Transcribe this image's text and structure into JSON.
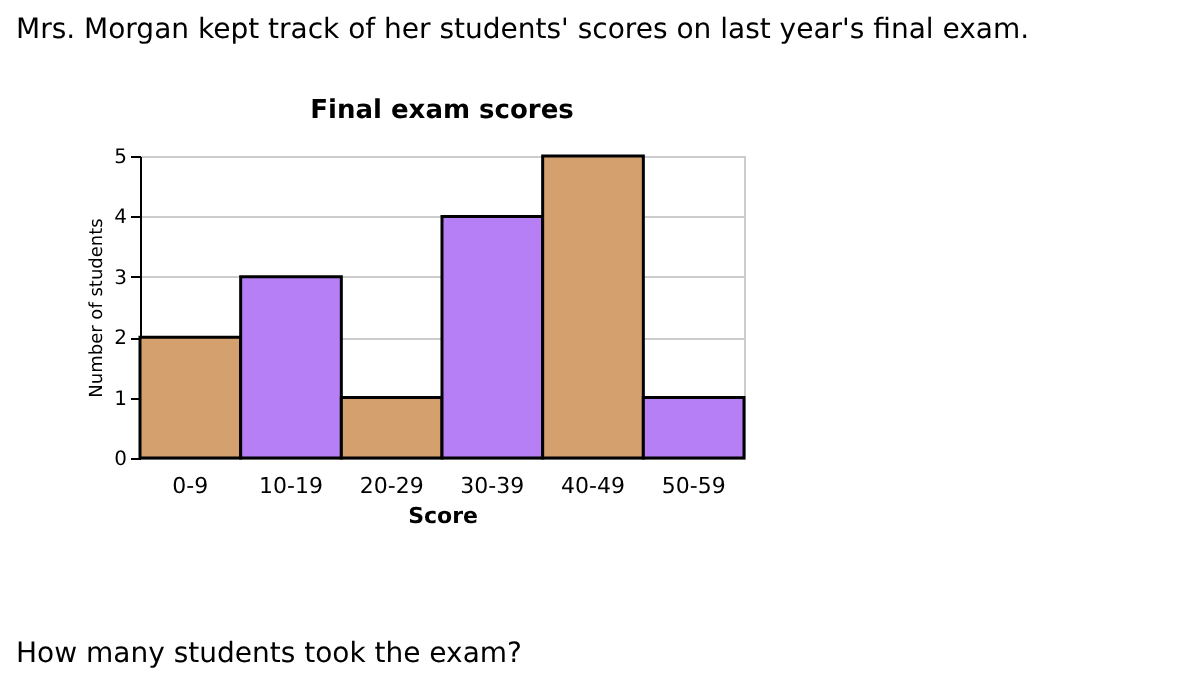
{
  "chart_data": {
    "type": "bar",
    "title": "Final exam scores",
    "xlabel": "Score",
    "ylabel": "Number of students",
    "categories": [
      "0-9",
      "10-19",
      "20-29",
      "30-39",
      "40-49",
      "50-59"
    ],
    "values": [
      2,
      3,
      1,
      4,
      5,
      1
    ],
    "colors": [
      "#d4a06e",
      "#b67ff6",
      "#d4a06e",
      "#b67ff6",
      "#d4a06e",
      "#b67ff6"
    ],
    "ylim": [
      0,
      5
    ],
    "yticks": [
      0,
      1,
      2,
      3,
      4,
      5
    ],
    "grid": "y",
    "annotations": [
      "Mrs. Morgan kept track of her students' scores on last year's final exam.",
      "How many students took the exam?"
    ]
  }
}
